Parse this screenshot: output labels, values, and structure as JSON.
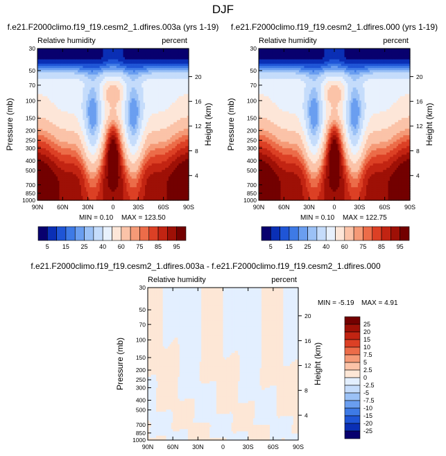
{
  "figure_title": "DJF",
  "colors": {
    "rh_levels": [
      "#08006e",
      "#0a2fb5",
      "#1f55d6",
      "#3e7ae6",
      "#6a9ef0",
      "#9bc1f6",
      "#c5dcfb",
      "#e8f1fd",
      "#fde6d8",
      "#fbc3a8",
      "#f59a77",
      "#ec6c49",
      "#dc4025",
      "#c22412",
      "#9e1006",
      "#730000"
    ],
    "diff_levels": [
      "#08006e",
      "#0a2fb5",
      "#1f55d6",
      "#3e7ae6",
      "#6a9ef0",
      "#9bc1f6",
      "#c5dcfb",
      "#e3efff",
      "#fde7d6",
      "#fbc3a8",
      "#f59a77",
      "#ec6c49",
      "#dc4025",
      "#c22412",
      "#9e1006",
      "#730000"
    ]
  },
  "chart_data": [
    {
      "type": "heatmap",
      "title": "f.e21.F2000climo.f19_f19.cesm2_1.dfires.003a (yrs 1-19)",
      "left_label": "Relative humidity",
      "right_label": "percent",
      "xlabel": "",
      "ylabel": "Pressure (mb)",
      "y2label": "Height (km)",
      "x_ticks": [
        "90N",
        "60N",
        "30N",
        "0",
        "30S",
        "60S",
        "90S"
      ],
      "y_ticks": [
        30,
        50,
        70,
        100,
        150,
        200,
        250,
        300,
        400,
        500,
        700,
        850,
        1000
      ],
      "y2_ticks": [
        4,
        8,
        12,
        16,
        20
      ],
      "ylim": [
        30,
        1000
      ],
      "y_scale": "log",
      "min_label": "MIN =  0.10",
      "max_label": "MAX = 123.50",
      "min": 0.1,
      "max": 123.5,
      "colorbar_labels": [
        "5",
        "15",
        "25",
        "40",
        "60",
        "75",
        "85",
        "95"
      ]
    },
    {
      "type": "heatmap",
      "title": "f.e21.F2000climo.f19_f19.cesm2_1.dfires.000 (yrs 1-19)",
      "left_label": "Relative humidity",
      "right_label": "percent",
      "xlabel": "",
      "ylabel": "Pressure (mb)",
      "y2label": "Height (km)",
      "x_ticks": [
        "90N",
        "60N",
        "30N",
        "0",
        "30S",
        "60S",
        "90S"
      ],
      "y_ticks": [
        30,
        50,
        70,
        100,
        150,
        200,
        250,
        300,
        400,
        500,
        700,
        850,
        1000
      ],
      "y2_ticks": [
        4,
        8,
        12,
        16,
        20
      ],
      "ylim": [
        30,
        1000
      ],
      "y_scale": "log",
      "min_label": "MIN =  0.10",
      "max_label": "MAX = 122.75",
      "min": 0.1,
      "max": 122.75,
      "colorbar_labels": [
        "5",
        "15",
        "25",
        "40",
        "60",
        "75",
        "85",
        "95"
      ]
    },
    {
      "type": "heatmap",
      "title": "f.e21.F2000climo.f19_f19.cesm2_1.dfires.003a - f.e21.F2000climo.f19_f19.cesm2_1.dfires.000",
      "left_label": "Relative humidity",
      "right_label": "percent",
      "xlabel": "",
      "ylabel": "Pressure (mb)",
      "y2label": "Height (km)",
      "x_ticks": [
        "90N",
        "60N",
        "30N",
        "0",
        "30S",
        "60S",
        "90S"
      ],
      "y_ticks": [
        30,
        50,
        70,
        100,
        150,
        200,
        250,
        300,
        400,
        500,
        700,
        850,
        1000
      ],
      "y2_ticks": [
        4,
        8,
        12,
        16,
        20
      ],
      "ylim": [
        30,
        1000
      ],
      "y_scale": "log",
      "min_label": "MIN =  -5.19",
      "max_label": "MAX =   4.91",
      "min": -5.19,
      "max": 4.91,
      "colorbar_labels": [
        "25",
        "20",
        "15",
        "10",
        "7.5",
        "5",
        "2.5",
        "0",
        "-2.5",
        "-5",
        "-7.5",
        "-10",
        "-15",
        "-20",
        "-25"
      ]
    }
  ]
}
